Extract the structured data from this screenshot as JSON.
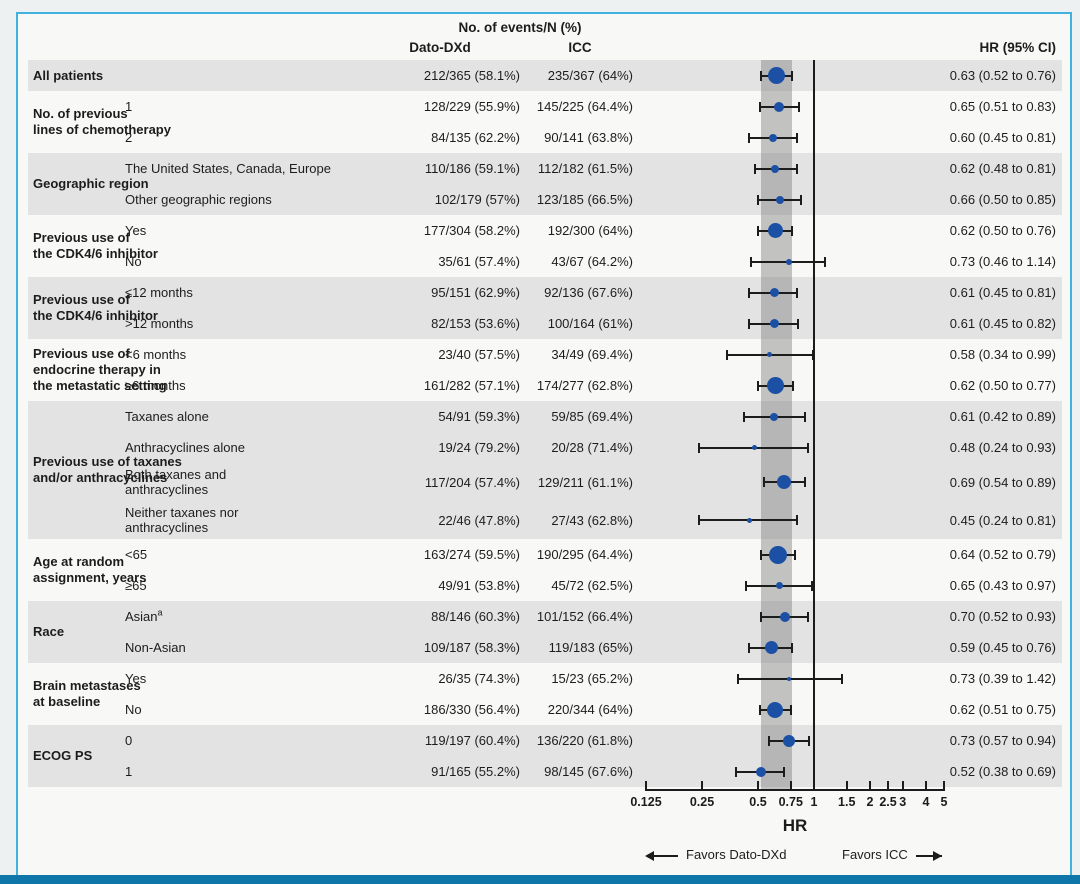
{
  "header": {
    "events_title": "No. of events/N (%)",
    "col_dato": "Dato-DXd",
    "col_icc": "ICC",
    "col_hr": "HR (95% CI)"
  },
  "axis": {
    "label": "HR",
    "scale": "log",
    "ticks": [
      0.125,
      0.25,
      0.5,
      0.75,
      1,
      1.5,
      2,
      2.5,
      3,
      4,
      5
    ],
    "tick_labels": [
      "0.125",
      "0.25",
      "0.5",
      "0.75",
      "1",
      "1.5",
      "2",
      "2.5",
      "3",
      "4",
      "5"
    ],
    "ref_line": 1,
    "shaded_band": [
      0.52,
      0.76
    ],
    "favors_left": "Favors Dato-DXd",
    "favors_right": "Favors ICC"
  },
  "colors": {
    "marker_blue": "#1b50a5",
    "frame_border": "#41b2dd",
    "bottom_bar": "#0e76a8",
    "row_shade": "#e3e3e3",
    "overall_band": "rgba(118,118,118,0.42)",
    "ink": "#1c1c1c"
  },
  "chart_data": {
    "type": "forest",
    "x_unit": "hazard ratio",
    "groups": [
      {
        "label_lines": [
          "All patients"
        ],
        "shaded": true,
        "rows": [
          {
            "sub_lines": [],
            "dato": "212/365 (58.1%)",
            "icc": "235/367 (64%)",
            "hr": 0.63,
            "lo": 0.52,
            "hi": 0.76,
            "hr_text": "0.63 (0.52 to 0.76)",
            "size": 17
          }
        ]
      },
      {
        "label_lines": [
          "No. of previous",
          "lines of chemotherapy"
        ],
        "shaded": false,
        "rows": [
          {
            "sub_lines": [
              "1"
            ],
            "dato": "128/229 (55.9%)",
            "icc": "145/225 (64.4%)",
            "hr": 0.65,
            "lo": 0.51,
            "hi": 0.83,
            "hr_text": "0.65 (0.51 to 0.83)",
            "size": 10
          },
          {
            "sub_lines": [
              "2"
            ],
            "dato": "84/135 (62.2%)",
            "icc": "90/141 (63.8%)",
            "hr": 0.6,
            "lo": 0.45,
            "hi": 0.81,
            "hr_text": "0.60 (0.45 to 0.81)",
            "size": 8
          }
        ]
      },
      {
        "label_lines": [
          "Geographic region"
        ],
        "shaded": true,
        "rows": [
          {
            "sub_lines": [
              "The United States, Canada, Europe"
            ],
            "dato": "110/186 (59.1%)",
            "icc": "112/182 (61.5%)",
            "hr": 0.62,
            "lo": 0.48,
            "hi": 0.81,
            "hr_text": "0.62 (0.48 to 0.81)",
            "size": 8
          },
          {
            "sub_lines": [
              "Other geographic regions"
            ],
            "dato": "102/179 (57%)",
            "icc": "123/185 (66.5%)",
            "hr": 0.66,
            "lo": 0.5,
            "hi": 0.85,
            "hr_text": "0.66 (0.50 to 0.85)",
            "size": 8
          }
        ]
      },
      {
        "label_lines": [
          "Previous use of",
          "the CDK4/6 inhibitor"
        ],
        "shaded": false,
        "rows": [
          {
            "sub_lines": [
              "Yes"
            ],
            "dato": "177/304 (58.2%)",
            "icc": "192/300 (64%)",
            "hr": 0.62,
            "lo": 0.5,
            "hi": 0.76,
            "hr_text": "0.62 (0.50 to 0.76)",
            "size": 15
          },
          {
            "sub_lines": [
              "No"
            ],
            "dato": "35/61 (57.4%)",
            "icc": "43/67 (64.2%)",
            "hr": 0.73,
            "lo": 0.46,
            "hi": 1.14,
            "hr_text": "0.73 (0.46 to 1.14)",
            "size": 6
          }
        ]
      },
      {
        "label_lines": [
          "Previous use of",
          "the CDK4/6 inhibitor"
        ],
        "shaded": true,
        "rows": [
          {
            "sub_lines": [
              "≤12 months"
            ],
            "dato": "95/151 (62.9%)",
            "icc": "92/136 (67.6%)",
            "hr": 0.61,
            "lo": 0.45,
            "hi": 0.81,
            "hr_text": "0.61 (0.45 to 0.81)",
            "size": 9
          },
          {
            "sub_lines": [
              ">12 months"
            ],
            "dato": "82/153 (53.6%)",
            "icc": "100/164 (61%)",
            "hr": 0.61,
            "lo": 0.45,
            "hi": 0.82,
            "hr_text": "0.61 (0.45 to 0.82)",
            "size": 9
          }
        ]
      },
      {
        "label_lines": [
          "Previous use of",
          "endocrine therapy in",
          "the metastatic setting"
        ],
        "shaded": false,
        "rows": [
          {
            "sub_lines": [
              "<6 months"
            ],
            "dato": "23/40 (57.5%)",
            "icc": "34/49 (69.4%)",
            "hr": 0.58,
            "lo": 0.34,
            "hi": 0.99,
            "hr_text": "0.58 (0.34 to 0.99)",
            "size": 5
          },
          {
            "sub_lines": [
              "≥6 months"
            ],
            "dato": "161/282 (57.1%)",
            "icc": "174/277 (62.8%)",
            "hr": 0.62,
            "lo": 0.5,
            "hi": 0.77,
            "hr_text": "0.62 (0.50 to 0.77)",
            "size": 17
          }
        ]
      },
      {
        "label_lines": [
          "Previous use of taxanes",
          "and/or anthracyclines"
        ],
        "shaded": true,
        "rows": [
          {
            "sub_lines": [
              "Taxanes alone"
            ],
            "dato": "54/91 (59.3%)",
            "icc": "59/85 (69.4%)",
            "hr": 0.61,
            "lo": 0.42,
            "hi": 0.89,
            "hr_text": "0.61 (0.42 to 0.89)",
            "size": 8
          },
          {
            "sub_lines": [
              "Anthracyclines alone"
            ],
            "dato": "19/24 (79.2%)",
            "icc": "20/28 (71.4%)",
            "hr": 0.48,
            "lo": 0.24,
            "hi": 0.93,
            "hr_text": "0.48 (0.24 to 0.93)",
            "size": 5
          },
          {
            "sub_lines": [
              "Both taxanes and",
              "anthracyclines"
            ],
            "dato": "117/204 (57.4%)",
            "icc": "129/211 (61.1%)",
            "hr": 0.69,
            "lo": 0.54,
            "hi": 0.89,
            "hr_text": "0.69 (0.54 to 0.89)",
            "size": 14
          },
          {
            "sub_lines": [
              "Neither taxanes nor",
              "anthracyclines"
            ],
            "dato": "22/46 (47.8%)",
            "icc": "27/43 (62.8%)",
            "hr": 0.45,
            "lo": 0.24,
            "hi": 0.81,
            "hr_text": "0.45 (0.24 to 0.81)",
            "size": 5
          }
        ]
      },
      {
        "label_lines": [
          "Age at random",
          "assignment, years"
        ],
        "shaded": false,
        "rows": [
          {
            "sub_lines": [
              "<65"
            ],
            "dato": "163/274 (59.5%)",
            "icc": "190/295 (64.4%)",
            "hr": 0.64,
            "lo": 0.52,
            "hi": 0.79,
            "hr_text": "0.64 (0.52 to 0.79)",
            "size": 18
          },
          {
            "sub_lines": [
              "≥65"
            ],
            "dato": "49/91 (53.8%)",
            "icc": "45/72 (62.5%)",
            "hr": 0.65,
            "lo": 0.43,
            "hi": 0.97,
            "hr_text": "0.65 (0.43 to 0.97)",
            "size": 7
          }
        ]
      },
      {
        "label_lines": [
          "Race"
        ],
        "shaded": true,
        "rows": [
          {
            "sub_lines": [
              "Asian"
            ],
            "sup": "a",
            "dato": "88/146 (60.3%)",
            "icc": "101/152 (66.4%)",
            "hr": 0.7,
            "lo": 0.52,
            "hi": 0.93,
            "hr_text": "0.70 (0.52 to 0.93)",
            "size": 10
          },
          {
            "sub_lines": [
              "Non-Asian"
            ],
            "dato": "109/187 (58.3%)",
            "icc": "119/183 (65%)",
            "hr": 0.59,
            "lo": 0.45,
            "hi": 0.76,
            "hr_text": "0.59 (0.45 to 0.76)",
            "size": 13
          }
        ]
      },
      {
        "label_lines": [
          "Brain metastases",
          "at baseline"
        ],
        "shaded": false,
        "rows": [
          {
            "sub_lines": [
              "Yes"
            ],
            "dato": "26/35 (74.3%)",
            "icc": "15/23 (65.2%)",
            "hr": 0.73,
            "lo": 0.39,
            "hi": 1.42,
            "hr_text": "0.73 (0.39 to 1.42)",
            "size": 4
          },
          {
            "sub_lines": [
              "No"
            ],
            "dato": "186/330 (56.4%)",
            "icc": "220/344 (64%)",
            "hr": 0.62,
            "lo": 0.51,
            "hi": 0.75,
            "hr_text": "0.62 (0.51 to 0.75)",
            "size": 16
          }
        ]
      },
      {
        "label_lines": [
          "ECOG PS"
        ],
        "shaded": true,
        "rows": [
          {
            "sub_lines": [
              "0"
            ],
            "dato": "119/197 (60.4%)",
            "icc": "136/220 (61.8%)",
            "hr": 0.73,
            "lo": 0.57,
            "hi": 0.94,
            "hr_text": "0.73 (0.57 to 0.94)",
            "size": 12
          },
          {
            "sub_lines": [
              "1"
            ],
            "dato": "91/165 (55.2%)",
            "icc": "98/145 (67.6%)",
            "hr": 0.52,
            "lo": 0.38,
            "hi": 0.69,
            "hr_text": "0.52 (0.38 to 0.69)",
            "size": 10
          }
        ]
      }
    ]
  }
}
